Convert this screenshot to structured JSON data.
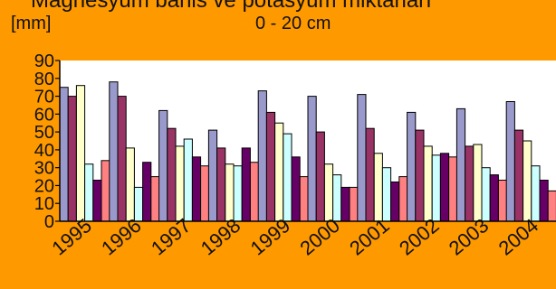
{
  "header": {
    "truncated_title": "Magnesyum bahis ve potasyum miktarları",
    "unit": "[mm]",
    "depth": "0 - 20 cm"
  },
  "chart_data": {
    "type": "bar",
    "title": "0 - 20 cm",
    "ylabel": "[mm]",
    "xlabel": "",
    "ylim": [
      0,
      90
    ],
    "yticks": [
      0,
      10,
      20,
      30,
      40,
      50,
      60,
      70,
      80,
      90
    ],
    "grid": false,
    "legend": "none",
    "categories": [
      "1995",
      "1996",
      "1997",
      "1998",
      "1999",
      "2000",
      "2001",
      "2002",
      "2003",
      "2004"
    ],
    "series": [
      {
        "color": "#9999cc",
        "values": [
          75,
          78,
          62,
          51,
          73,
          70,
          71,
          61,
          63,
          67
        ]
      },
      {
        "color": "#993366",
        "values": [
          70,
          70,
          52,
          41,
          61,
          50,
          52,
          51,
          42,
          51
        ]
      },
      {
        "color": "#ffffcc",
        "values": [
          76,
          41,
          42,
          32,
          55,
          32,
          38,
          42,
          43,
          45
        ]
      },
      {
        "color": "#ccffff",
        "values": [
          32,
          19,
          46,
          31,
          49,
          26,
          30,
          37,
          30,
          31
        ]
      },
      {
        "color": "#660066",
        "values": [
          23,
          33,
          36,
          41,
          36,
          19,
          22,
          38,
          26,
          23
        ]
      },
      {
        "color": "#ff8080",
        "values": [
          34,
          25,
          31,
          33,
          25,
          19,
          25,
          36,
          23,
          17
        ]
      }
    ]
  }
}
